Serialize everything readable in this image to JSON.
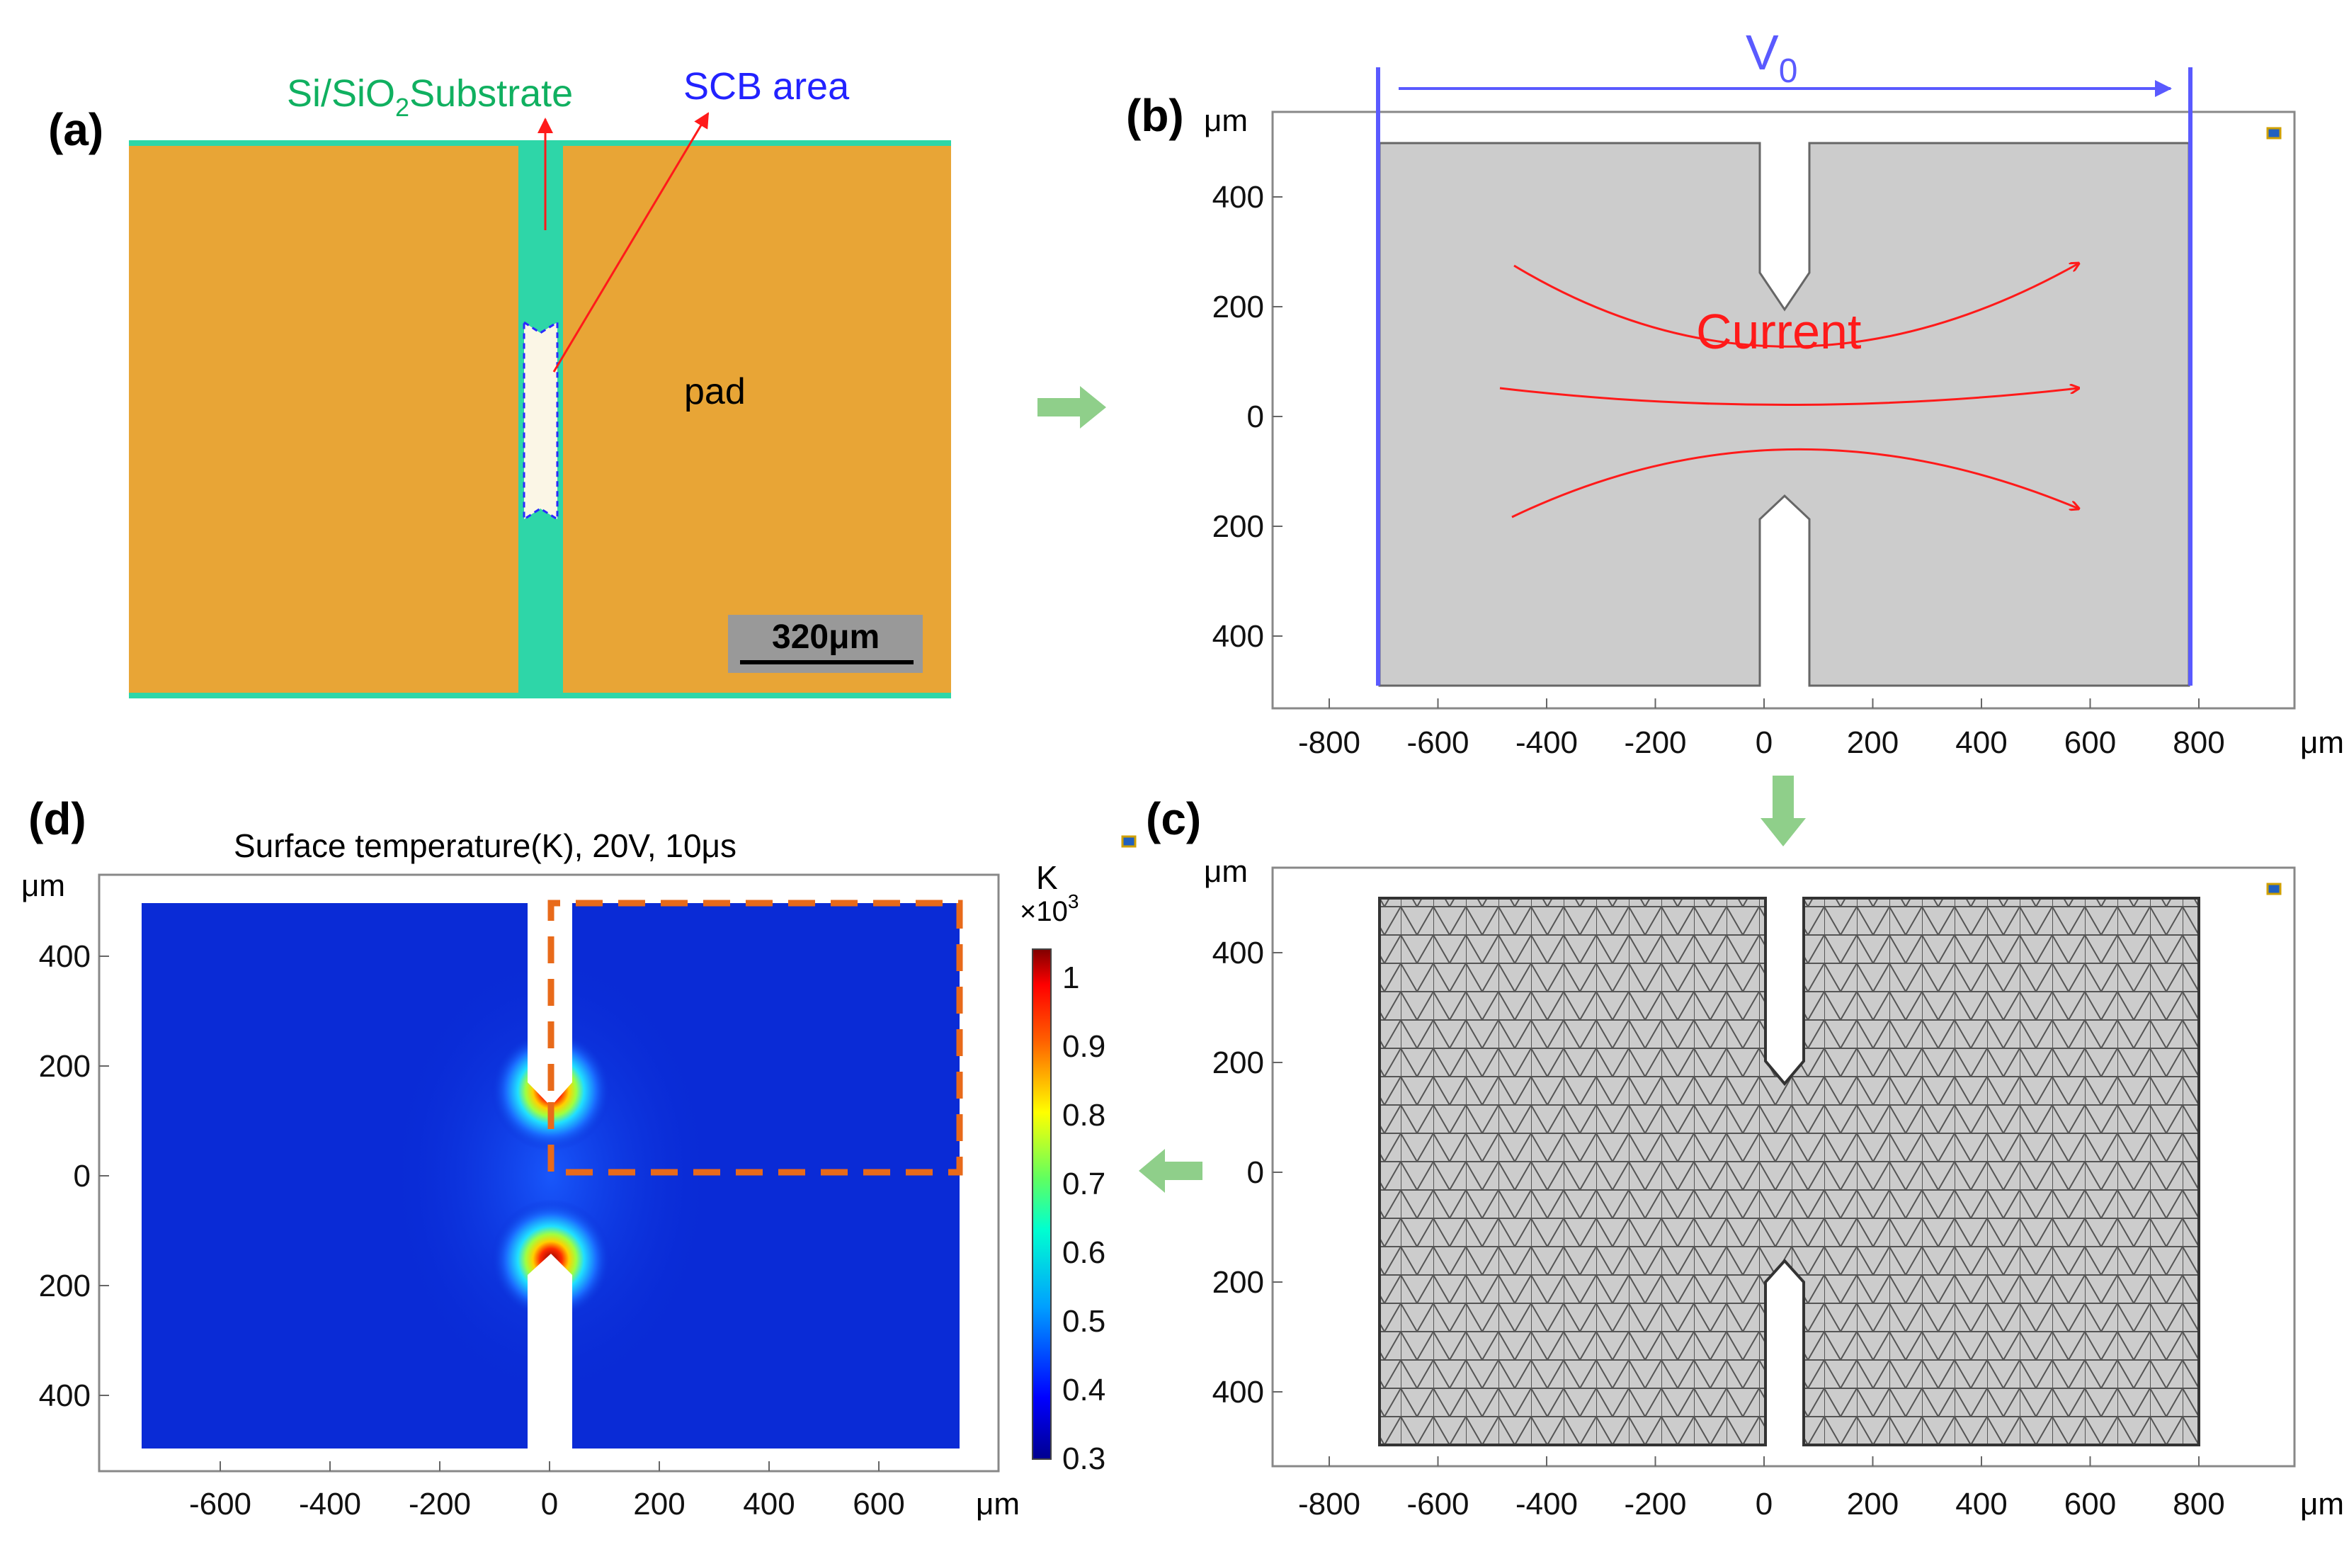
{
  "panel_a": {
    "label": "(a)",
    "substrate_label": "Si/SiO",
    "substrate_sub": "2",
    "substrate_label_rest": "Substrate",
    "scb_label": "SCB area",
    "pad_label": "pad",
    "scale_bar": "320μm"
  },
  "panel_b": {
    "label": "(b)",
    "unit": "μm",
    "voltage_label": "V",
    "voltage_sub": "0",
    "current_label": "Current",
    "y_ticks": [
      "400",
      "200",
      "0",
      "200",
      "400"
    ],
    "x_ticks": [
      "-800",
      "-600",
      "-400",
      "-200",
      "0",
      "200",
      "400",
      "600",
      "800"
    ]
  },
  "panel_c": {
    "label": "(c)",
    "unit": "μm",
    "y_ticks": [
      "400",
      "200",
      "0",
      "200",
      "400"
    ],
    "x_ticks": [
      "-800",
      "-600",
      "-400",
      "-200",
      "0",
      "200",
      "400",
      "600",
      "800"
    ]
  },
  "panel_d": {
    "label": "(d)",
    "title": "Surface temperature(K), 20V, 10μs",
    "unit": "μm",
    "colorbar_unit": "K",
    "colorbar_scale": "×10",
    "colorbar_scale_exp": "3",
    "colorbar_ticks": [
      "1",
      "0.9",
      "0.8",
      "0.7",
      "0.6",
      "0.5",
      "0.4",
      "0.3"
    ],
    "y_ticks": [
      "400",
      "200",
      "0",
      "200",
      "400"
    ],
    "x_ticks": [
      "-600",
      "-400",
      "-200",
      "0",
      "200",
      "400",
      "600"
    ]
  },
  "colors": {
    "pad": "#e8a536",
    "substrate": "#2ed6a8",
    "scb": "#fbf6e6",
    "current": "#ff1a1a",
    "electrode": "#5a5aff",
    "arrow": "#8fcf8a",
    "geometry": "#cccccc",
    "heat_low": "#0a2bd6",
    "dashed_box": "#e86a1a"
  }
}
